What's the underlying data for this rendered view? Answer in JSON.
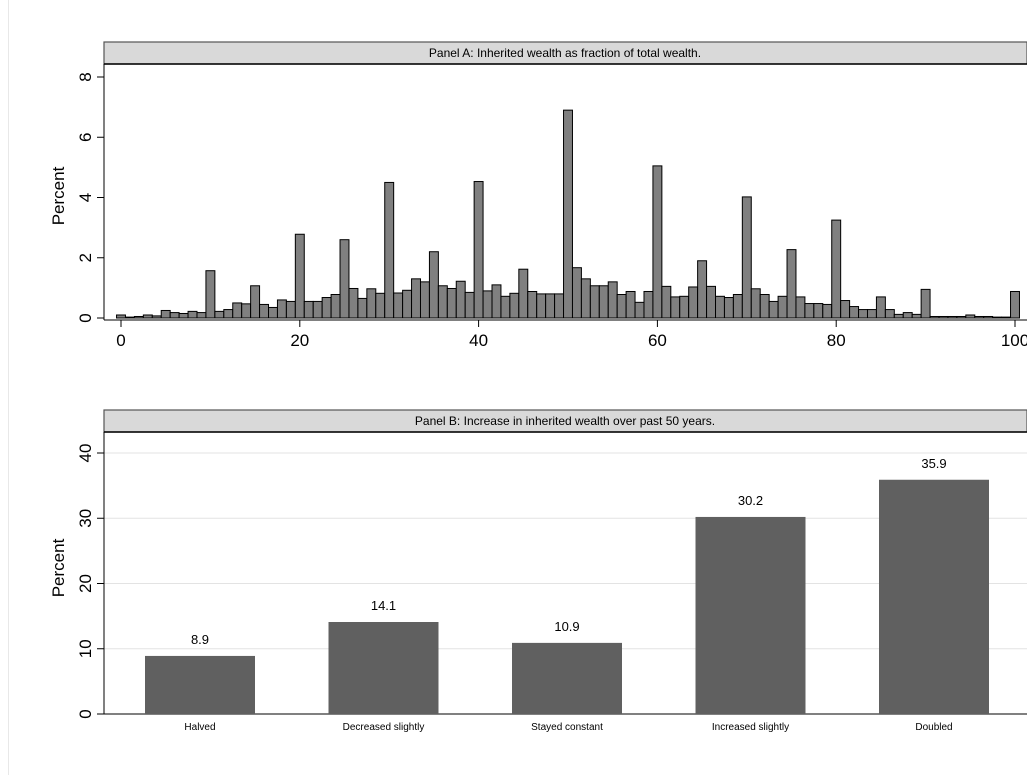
{
  "chart_data": [
    {
      "type": "bar",
      "title": "Panel A: Inherited wealth as fraction of total wealth.",
      "ylabel": "Percent",
      "xlabel": "",
      "xlim": [
        0,
        100
      ],
      "ylim": [
        0,
        8
      ],
      "xticks": [
        0,
        20,
        40,
        60,
        80,
        100
      ],
      "yticks": [
        0,
        2,
        4,
        6,
        8
      ],
      "grid": false,
      "x": [
        0,
        1,
        2,
        3,
        4,
        5,
        6,
        7,
        8,
        9,
        10,
        11,
        12,
        13,
        14,
        15,
        16,
        17,
        18,
        19,
        20,
        21,
        22,
        23,
        24,
        25,
        26,
        27,
        28,
        29,
        30,
        31,
        32,
        33,
        34,
        35,
        36,
        37,
        38,
        39,
        40,
        41,
        42,
        43,
        44,
        45,
        46,
        47,
        48,
        49,
        50,
        51,
        52,
        53,
        54,
        55,
        56,
        57,
        58,
        59,
        60,
        61,
        62,
        63,
        64,
        65,
        66,
        67,
        68,
        69,
        70,
        71,
        72,
        73,
        74,
        75,
        76,
        77,
        78,
        79,
        80,
        81,
        82,
        83,
        84,
        85,
        86,
        87,
        88,
        89,
        90,
        91,
        92,
        93,
        94,
        95,
        96,
        97,
        98,
        99,
        100
      ],
      "values": [
        0.1,
        0.03,
        0.05,
        0.1,
        0.07,
        0.25,
        0.18,
        0.15,
        0.22,
        0.18,
        1.57,
        0.22,
        0.28,
        0.5,
        0.47,
        1.07,
        0.45,
        0.35,
        0.6,
        0.55,
        2.78,
        0.55,
        0.55,
        0.68,
        0.78,
        2.6,
        0.98,
        0.65,
        0.97,
        0.82,
        4.5,
        0.83,
        0.92,
        1.3,
        1.2,
        2.2,
        1.07,
        0.98,
        1.22,
        0.85,
        4.53,
        0.9,
        1.1,
        0.72,
        0.82,
        1.62,
        0.88,
        0.8,
        0.8,
        0.8,
        6.9,
        1.67,
        1.3,
        1.07,
        1.07,
        1.2,
        0.78,
        0.88,
        0.52,
        0.88,
        5.05,
        1.05,
        0.7,
        0.72,
        1.03,
        1.9,
        1.05,
        0.72,
        0.68,
        0.78,
        4.02,
        0.97,
        0.78,
        0.55,
        0.72,
        2.27,
        0.7,
        0.48,
        0.48,
        0.45,
        3.25,
        0.58,
        0.38,
        0.28,
        0.28,
        0.7,
        0.28,
        0.12,
        0.18,
        0.12,
        0.95,
        0.05,
        0.05,
        0.05,
        0.05,
        0.1,
        0.05,
        0.05,
        0.03,
        0.03,
        0.88
      ]
    },
    {
      "type": "bar",
      "title": "Panel B: Increase in inherited wealth over past 50 years.",
      "ylabel": "Percent",
      "xlabel": "",
      "categories": [
        "Halved",
        "Decreased slightly",
        "Stayed constant",
        "Increased slightly",
        "Doubled"
      ],
      "values": [
        8.9,
        14.1,
        10.9,
        30.2,
        35.9
      ],
      "value_labels": [
        "8.9",
        "14.1",
        "10.9",
        "30.2",
        "35.9"
      ],
      "ylim": [
        0,
        40
      ],
      "yticks": [
        0,
        10,
        20,
        30,
        40
      ],
      "grid": true
    }
  ],
  "colors": {
    "panelA_bar": "#808080",
    "panelB_bar": "#606060",
    "panel_header": "#d9d9d9",
    "grid": "#e3e3e3"
  }
}
